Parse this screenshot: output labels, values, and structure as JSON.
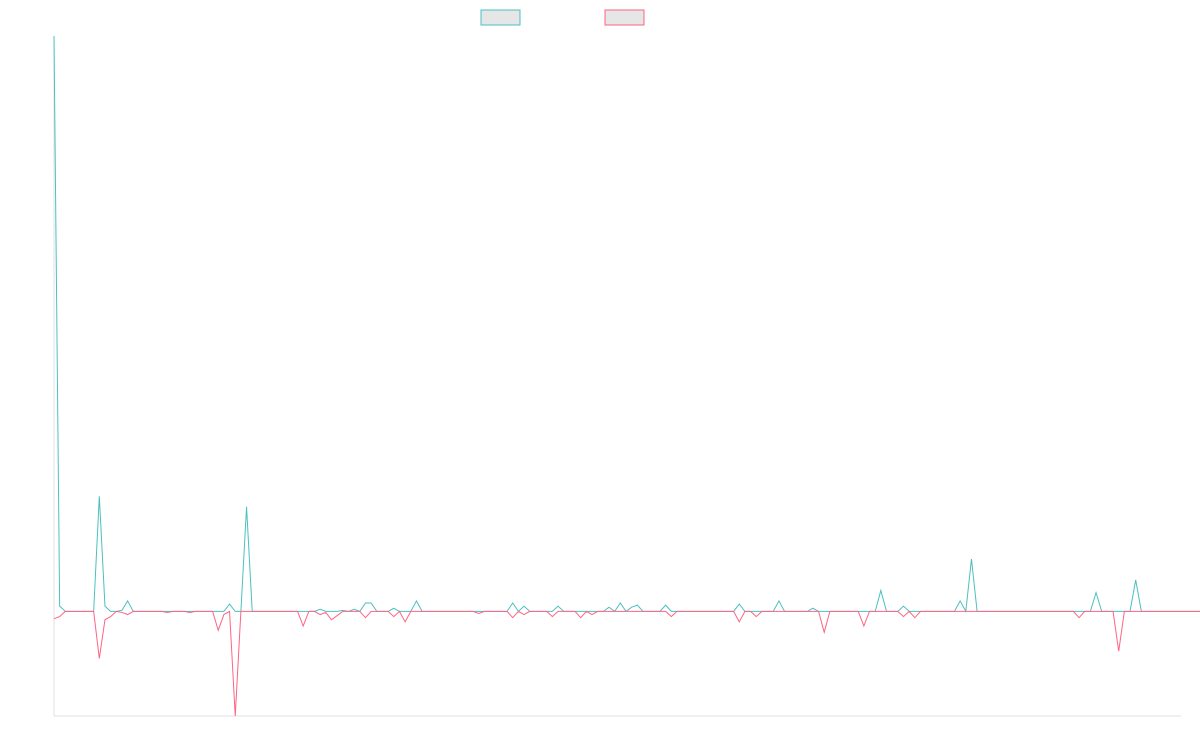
{
  "chart_data": {
    "type": "line",
    "title": "",
    "xlabel": "",
    "ylabel": "",
    "legend_position": "top",
    "grid": false,
    "x_count": 200,
    "ylim": [
      -1.0,
      5.5
    ],
    "colors": {
      "series_1": "#4bc0c0",
      "series_2": "#ff6384"
    },
    "series": [
      {
        "color": "#4bc0c0",
        "values": [
          5.5,
          0.05,
          0.0,
          0.0,
          0.0,
          0.0,
          0.0,
          0.0,
          1.1,
          0.05,
          0.0,
          0.0,
          0.01,
          0.1,
          0.0,
          0.0,
          0.0,
          0.0,
          0.0,
          0.0,
          0.0,
          0.0,
          0.0,
          0.0,
          0.0,
          0.0,
          0.0,
          0.0,
          0.0,
          0.0,
          0.0,
          0.07,
          0.0,
          0.0,
          1.0,
          0.0,
          0.0,
          0.0,
          0.0,
          0.0,
          0.0,
          0.0,
          0.0,
          0.0,
          0.0,
          0.0,
          0.0,
          0.02,
          0.0,
          0.0,
          0.0,
          0.01,
          0.0,
          0.02,
          0.0,
          0.08,
          0.08,
          0.0,
          0.0,
          0.0,
          0.03,
          0.0,
          0.0,
          0.0,
          0.1,
          0.0,
          0.0,
          0.0,
          0.0,
          0.0,
          0.0,
          0.0,
          0.0,
          0.0,
          0.0,
          0.0,
          0.0,
          0.0,
          0.0,
          0.0,
          0.0,
          0.08,
          0.0,
          0.05,
          0.0,
          0.0,
          0.0,
          0.0,
          0.0,
          0.05,
          0.0,
          0.0,
          0.0,
          0.0,
          0.0,
          0.0,
          0.0,
          0.0,
          0.04,
          0.0,
          0.08,
          0.0,
          0.04,
          0.06,
          0.0,
          0.0,
          0.0,
          0.0,
          0.06,
          0.0,
          0.0,
          0.0,
          0.0,
          0.0,
          0.0,
          0.0,
          0.0,
          0.0,
          0.0,
          0.0,
          0.0,
          0.07,
          0.0,
          0.0,
          0.0,
          0.0,
          0.0,
          0.0,
          0.1,
          0.0,
          0.0,
          0.0,
          0.0,
          0.0,
          0.03,
          0.0,
          0.0,
          0.0,
          0.0,
          0.0,
          0.0,
          0.0,
          0.0,
          0.0,
          0.0,
          0.0,
          0.2,
          0.0,
          0.0,
          0.0,
          0.05,
          0.0,
          0.0,
          0.0,
          0.0,
          0.0,
          0.0,
          0.0,
          0.0,
          0.0,
          0.1,
          0.0,
          0.5,
          0.0,
          0.0,
          0.0,
          0.0,
          0.0,
          0.0,
          0.0,
          0.0,
          0.0,
          0.0,
          0.0,
          0.0,
          0.0,
          0.0,
          0.0,
          0.0,
          0.0,
          0.0,
          0.0,
          0.0,
          0.0,
          0.18,
          0.0,
          0.0,
          0.0,
          0.0,
          0.0,
          0.0,
          0.3,
          0.0,
          0.0,
          0.0,
          0.0,
          0.0,
          0.0,
          0.0,
          0.0,
          0.0,
          0.0,
          0.0,
          0.0
        ]
      },
      {
        "color": "#ff6384",
        "values": [
          -0.07,
          -0.05,
          0.0,
          0.0,
          0.0,
          0.0,
          0.0,
          0.0,
          -0.45,
          -0.08,
          -0.05,
          0.0,
          -0.01,
          -0.03,
          0.0,
          0.0,
          0.0,
          0.0,
          0.0,
          0.0,
          -0.01,
          0.0,
          0.0,
          0.0,
          -0.01,
          0.0,
          0.0,
          0.0,
          0.0,
          -0.18,
          -0.03,
          0.0,
          -1.0,
          0.0,
          0.0,
          0.0,
          0.0,
          0.0,
          0.0,
          0.0,
          0.0,
          0.0,
          0.0,
          0.0,
          -0.14,
          0.0,
          0.0,
          -0.03,
          -0.01,
          -0.08,
          -0.04,
          0.0,
          0.0,
          0.0,
          0.0,
          -0.06,
          0.0,
          0.0,
          0.0,
          0.0,
          -0.05,
          0.0,
          -0.1,
          0.0,
          0.0,
          0.0,
          0.0,
          0.0,
          0.0,
          0.0,
          0.0,
          0.0,
          0.0,
          0.0,
          0.0,
          -0.02,
          0.0,
          0.0,
          0.0,
          0.0,
          0.0,
          -0.06,
          0.0,
          -0.03,
          0.0,
          0.0,
          0.0,
          0.0,
          -0.05,
          0.0,
          0.0,
          0.0,
          0.0,
          -0.06,
          0.0,
          -0.03,
          0.0,
          0.0,
          0.0,
          0.0,
          0.0,
          0.0,
          0.0,
          0.0,
          0.0,
          0.0,
          0.0,
          0.0,
          0.0,
          -0.05,
          0.0,
          0.0,
          0.0,
          0.0,
          0.0,
          0.0,
          0.0,
          0.0,
          0.0,
          0.0,
          0.0,
          -0.1,
          0.0,
          0.0,
          -0.05,
          0.0,
          0.0,
          0.0,
          0.0,
          0.0,
          0.0,
          0.0,
          0.0,
          0.0,
          0.0,
          0.0,
          -0.2,
          0.0,
          0.0,
          0.0,
          0.0,
          0.0,
          0.0,
          -0.14,
          0.0,
          0.0,
          0.0,
          0.0,
          0.0,
          0.0,
          -0.05,
          0.0,
          -0.06,
          0.0,
          0.0,
          0.0,
          0.0,
          0.0,
          0.0,
          0.0,
          0.0,
          0.0,
          0.0,
          0.0,
          0.0,
          0.0,
          0.0,
          0.0,
          0.0,
          0.0,
          0.0,
          0.0,
          0.0,
          0.0,
          0.0,
          0.0,
          0.0,
          0.0,
          0.0,
          0.0,
          0.0,
          -0.06,
          0.0,
          0.0,
          0.0,
          0.0,
          0.0,
          0.0,
          -0.38,
          0.0,
          0.0,
          0.0,
          0.0,
          0.0,
          0.0,
          0.0,
          0.0,
          0.0,
          0.0,
          0.0,
          0.0,
          0.0,
          0.0,
          0.0,
          0.0,
          0.0,
          0.0,
          0.0
        ]
      }
    ]
  }
}
